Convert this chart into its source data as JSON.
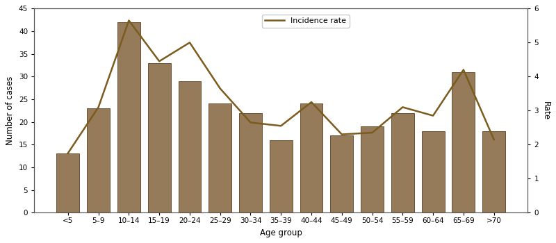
{
  "categories": [
    "<5",
    "5–9",
    "10–14",
    "15–19",
    "20–24",
    "25–29",
    "30–34",
    "35–39",
    "40–44",
    "45–49",
    "50–54",
    "55–59",
    "60–64",
    "65–69",
    ">70"
  ],
  "bar_values": [
    13,
    23,
    42,
    33,
    29,
    24,
    22,
    16,
    24,
    17,
    19,
    22,
    18,
    31,
    18
  ],
  "line_values": [
    1.75,
    3.1,
    5.65,
    4.45,
    5.0,
    3.65,
    2.65,
    2.55,
    3.25,
    2.3,
    2.35,
    3.1,
    2.85,
    4.2,
    2.15
  ],
  "bar_color": "#967B5A",
  "bar_edgecolor": "#6B5030",
  "line_color": "#7B5B1E",
  "ylabel_left": "Number of cases",
  "ylabel_right": "Rate",
  "xlabel": "Age group",
  "legend_label": "Incidence rate",
  "ylim_left": [
    0,
    45
  ],
  "ylim_right": [
    0,
    6
  ],
  "yticks_left": [
    0,
    5,
    10,
    15,
    20,
    25,
    30,
    35,
    40,
    45
  ],
  "yticks_right": [
    0,
    1,
    2,
    3,
    4,
    5,
    6
  ],
  "background_color": "#ffffff",
  "figsize": [
    8.0,
    3.5
  ],
  "dpi": 100
}
